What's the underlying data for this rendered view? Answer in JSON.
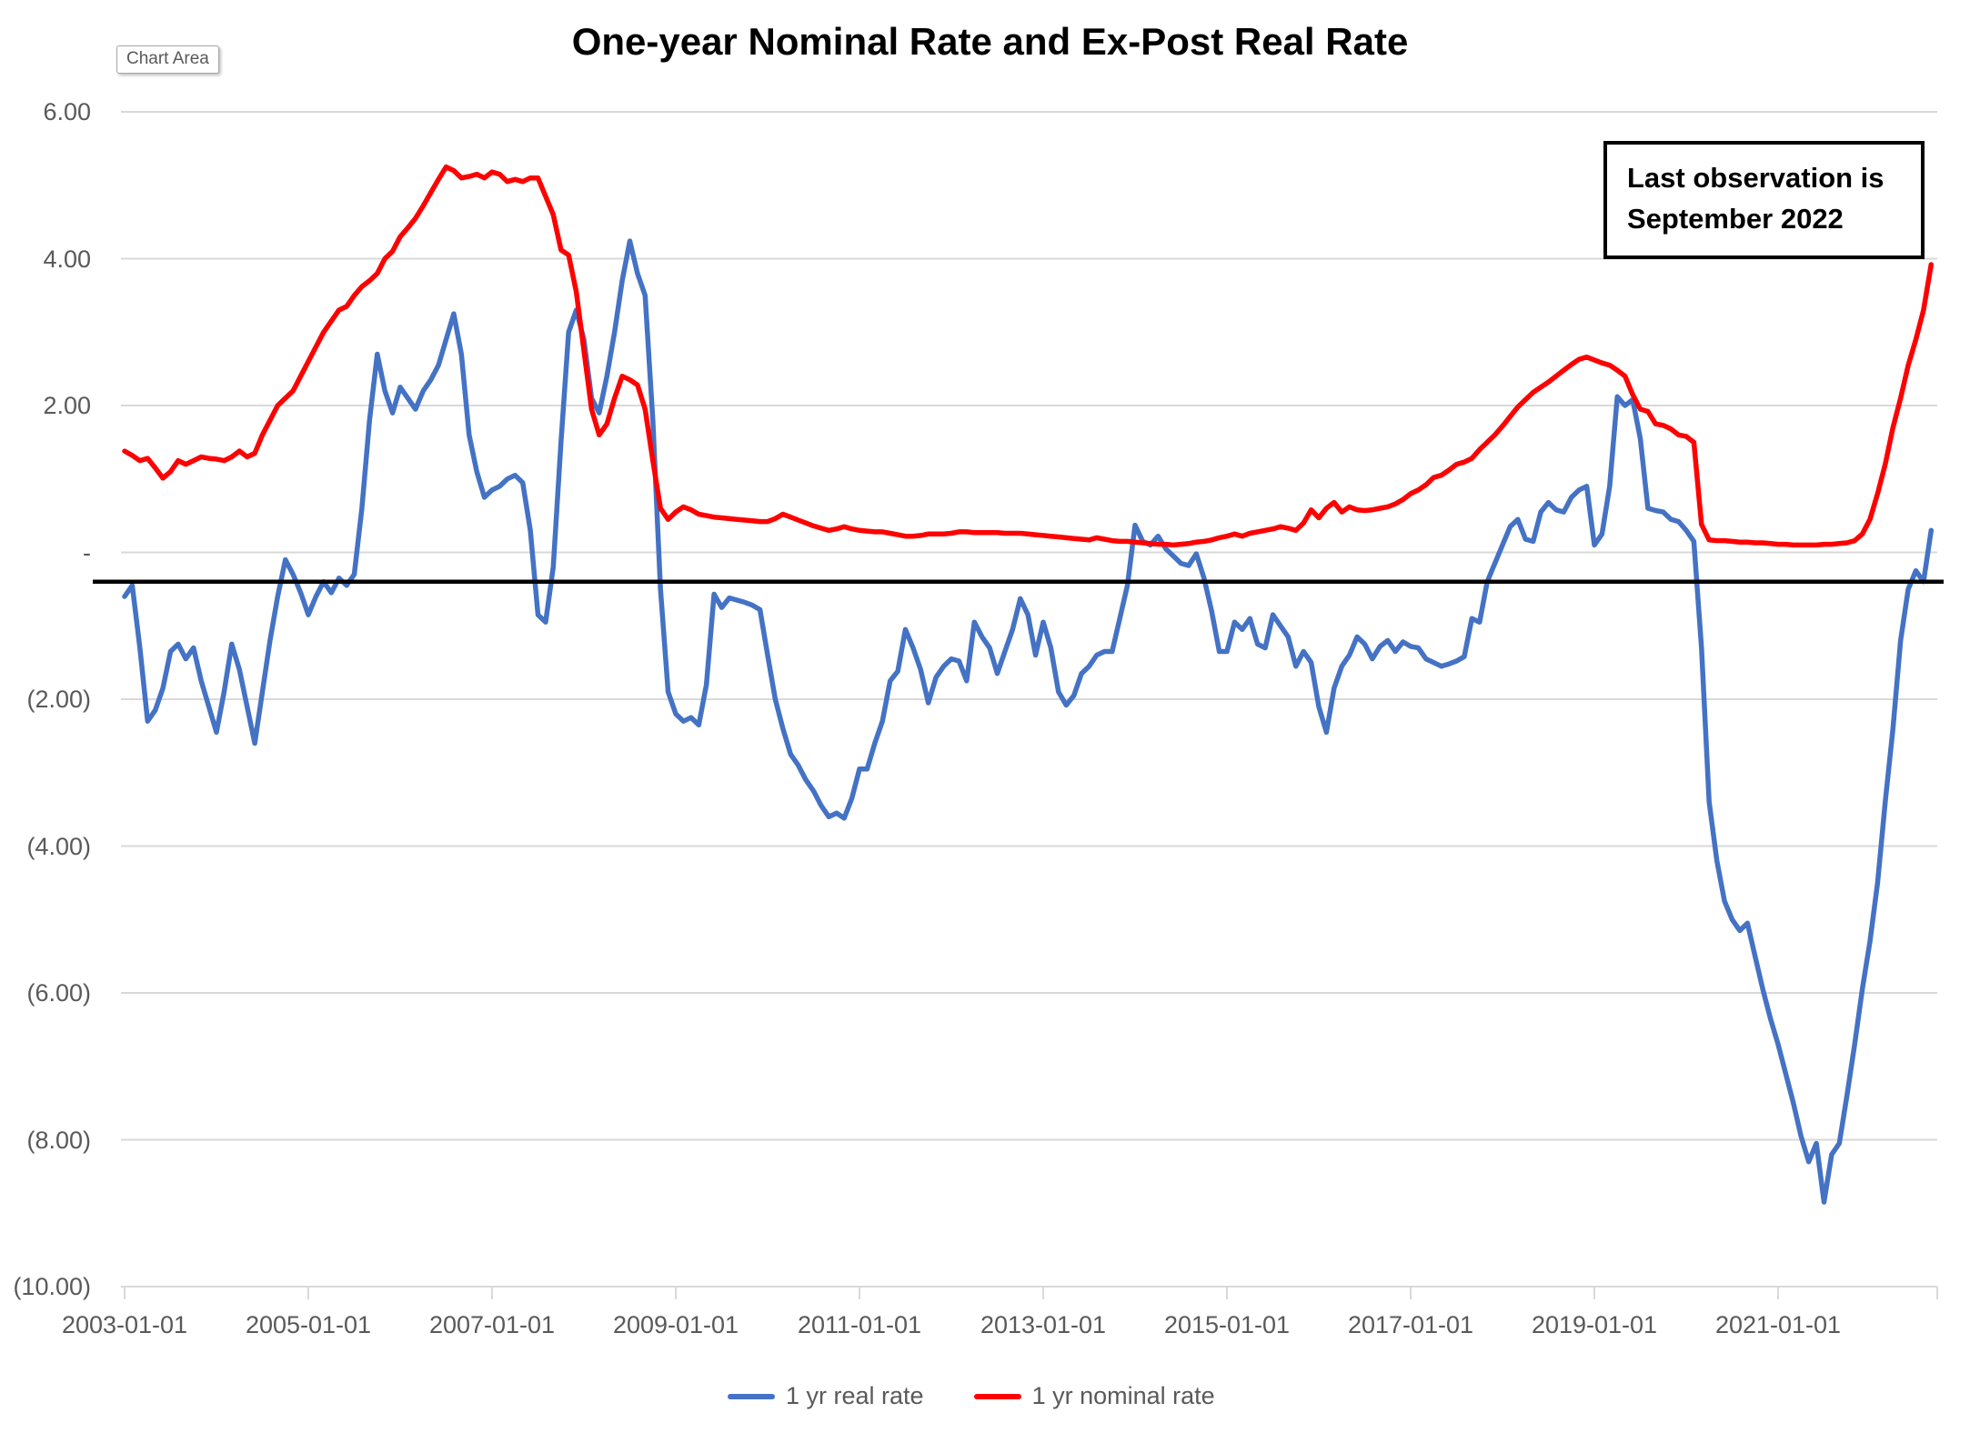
{
  "title": "One-year Nominal Rate and Ex-Post Real Rate",
  "chart_area_tooltip": "Chart Area",
  "annotation": {
    "line1": "Last observation is",
    "line2": "September 2022"
  },
  "colors": {
    "real_rate": "#4472C4",
    "nominal_rate": "#FF0000",
    "gridline": "#D9D9D9",
    "axis_text": "#595959",
    "reference_line": "#000000"
  },
  "reference_line": {
    "value": -0.4
  },
  "y_axis": {
    "labels": [
      "6.00",
      "4.00",
      "2.00",
      "-",
      "(2.00)",
      "(4.00)",
      "(6.00)",
      "(8.00)",
      "(10.00)"
    ],
    "values": [
      6,
      4,
      2,
      0,
      -2,
      -4,
      -6,
      -8,
      -10
    ]
  },
  "x_axis": {
    "labels": [
      "2003-01-01",
      "2005-01-01",
      "2007-01-01",
      "2009-01-01",
      "2011-01-01",
      "2013-01-01",
      "2015-01-01",
      "2017-01-01",
      "2019-01-01",
      "2021-01-01"
    ]
  },
  "legend": [
    {
      "label": "1 yr real rate",
      "color": "#4472C4"
    },
    {
      "label": "1 yr nominal rate",
      "color": "#FF0000"
    }
  ],
  "chart_data": {
    "type": "line",
    "title": "One-year Nominal Rate and Ex-Post Real Rate",
    "x_start": "2003-01",
    "x_end": "2022-09",
    "frequency": "monthly",
    "ylim": [
      -10,
      6
    ],
    "grid": "horizontal",
    "legend_position": "bottom",
    "annotation": "Last observation is September 2022",
    "series": [
      {
        "name": "1 yr real rate",
        "color": "#4472C4",
        "values": [
          -0.6,
          -0.45,
          -1.3,
          -2.3,
          -2.15,
          -1.85,
          -1.35,
          -1.25,
          -1.45,
          -1.3,
          -1.75,
          -2.1,
          -2.45,
          -1.9,
          -1.25,
          -1.6,
          -2.1,
          -2.6,
          -1.9,
          -1.2,
          -0.6,
          -0.1,
          -0.3,
          -0.55,
          -0.85,
          -0.6,
          -0.4,
          -0.55,
          -0.35,
          -0.45,
          -0.3,
          0.6,
          1.8,
          2.7,
          2.2,
          1.9,
          2.25,
          2.1,
          1.95,
          2.2,
          2.35,
          2.55,
          2.9,
          3.25,
          2.7,
          1.6,
          1.1,
          0.75,
          0.85,
          0.9,
          1.0,
          1.05,
          0.95,
          0.3,
          -0.85,
          -0.95,
          -0.2,
          1.5,
          3.0,
          3.3,
          2.9,
          2.1,
          1.9,
          2.4,
          3.0,
          3.7,
          4.24,
          3.8,
          3.5,
          1.8,
          -0.5,
          -1.9,
          -2.2,
          -2.3,
          -2.25,
          -2.35,
          -1.8,
          -0.57,
          -0.75,
          -0.62,
          -0.65,
          -0.68,
          -0.72,
          -0.78,
          -1.4,
          -2.0,
          -2.4,
          -2.75,
          -2.9,
          -3.1,
          -3.25,
          -3.45,
          -3.6,
          -3.55,
          -3.62,
          -3.35,
          -2.95,
          -2.95,
          -2.6,
          -2.3,
          -1.75,
          -1.62,
          -1.05,
          -1.3,
          -1.6,
          -2.05,
          -1.7,
          -1.55,
          -1.45,
          -1.48,
          -1.75,
          -0.95,
          -1.15,
          -1.3,
          -1.65,
          -1.35,
          -1.05,
          -0.63,
          -0.85,
          -1.4,
          -0.95,
          -1.3,
          -1.9,
          -2.08,
          -1.95,
          -1.65,
          -1.55,
          -1.4,
          -1.35,
          -1.35,
          -0.9,
          -0.45,
          0.37,
          0.15,
          0.1,
          0.22,
          0.05,
          -0.05,
          -0.15,
          -0.18,
          -0.02,
          -0.35,
          -0.8,
          -1.35,
          -1.35,
          -0.95,
          -1.05,
          -0.9,
          -1.25,
          -1.3,
          -0.85,
          -1.0,
          -1.15,
          -1.55,
          -1.35,
          -1.5,
          -2.1,
          -2.45,
          -1.85,
          -1.55,
          -1.4,
          -1.15,
          -1.25,
          -1.45,
          -1.28,
          -1.2,
          -1.35,
          -1.22,
          -1.28,
          -1.3,
          -1.45,
          -1.5,
          -1.55,
          -1.52,
          -1.48,
          -1.42,
          -0.9,
          -0.95,
          -0.4,
          -0.15,
          0.1,
          0.35,
          0.45,
          0.18,
          0.15,
          0.55,
          0.68,
          0.58,
          0.55,
          0.75,
          0.85,
          0.9,
          0.1,
          0.25,
          0.9,
          2.12,
          2.0,
          2.08,
          1.55,
          0.6,
          0.57,
          0.55,
          0.45,
          0.42,
          0.3,
          0.15,
          -1.3,
          -3.4,
          -4.2,
          -4.75,
          -5.0,
          -5.15,
          -5.05,
          -5.5,
          -5.95,
          -6.35,
          -6.7,
          -7.1,
          -7.5,
          -7.95,
          -8.3,
          -8.05,
          -8.85,
          -8.2,
          -8.05,
          -7.4,
          -6.7,
          -5.95,
          -5.3,
          -4.5,
          -3.4,
          -2.4,
          -1.2,
          -0.5,
          -0.25,
          -0.4,
          0.3
        ]
      },
      {
        "name": "1 yr nominal rate",
        "color": "#FF0000",
        "values": [
          1.38,
          1.32,
          1.25,
          1.28,
          1.15,
          1.01,
          1.1,
          1.25,
          1.2,
          1.25,
          1.3,
          1.28,
          1.27,
          1.25,
          1.3,
          1.38,
          1.3,
          1.35,
          1.6,
          1.8,
          2.0,
          2.1,
          2.2,
          2.4,
          2.6,
          2.8,
          3.0,
          3.15,
          3.3,
          3.35,
          3.5,
          3.62,
          3.7,
          3.8,
          4.0,
          4.1,
          4.3,
          4.42,
          4.55,
          4.72,
          4.9,
          5.08,
          5.25,
          5.2,
          5.1,
          5.12,
          5.15,
          5.1,
          5.18,
          5.15,
          5.05,
          5.08,
          5.05,
          5.1,
          5.1,
          4.85,
          4.6,
          4.12,
          4.05,
          3.55,
          2.75,
          1.95,
          1.6,
          1.75,
          2.1,
          2.4,
          2.35,
          2.28,
          1.95,
          1.25,
          0.6,
          0.45,
          0.55,
          0.62,
          0.58,
          0.52,
          0.5,
          0.48,
          0.47,
          0.46,
          0.45,
          0.44,
          0.43,
          0.42,
          0.42,
          0.46,
          0.52,
          0.48,
          0.44,
          0.4,
          0.36,
          0.33,
          0.3,
          0.32,
          0.35,
          0.32,
          0.3,
          0.29,
          0.28,
          0.28,
          0.26,
          0.24,
          0.22,
          0.22,
          0.23,
          0.25,
          0.25,
          0.25,
          0.26,
          0.28,
          0.28,
          0.27,
          0.27,
          0.27,
          0.27,
          0.26,
          0.26,
          0.26,
          0.25,
          0.24,
          0.23,
          0.22,
          0.21,
          0.2,
          0.19,
          0.18,
          0.17,
          0.2,
          0.18,
          0.16,
          0.15,
          0.15,
          0.14,
          0.13,
          0.12,
          0.11,
          0.11,
          0.1,
          0.11,
          0.12,
          0.14,
          0.15,
          0.17,
          0.2,
          0.22,
          0.25,
          0.22,
          0.26,
          0.28,
          0.3,
          0.32,
          0.35,
          0.33,
          0.3,
          0.4,
          0.58,
          0.47,
          0.6,
          0.68,
          0.55,
          0.62,
          0.58,
          0.57,
          0.58,
          0.6,
          0.62,
          0.66,
          0.72,
          0.8,
          0.85,
          0.92,
          1.02,
          1.05,
          1.12,
          1.2,
          1.23,
          1.28,
          1.4,
          1.5,
          1.6,
          1.72,
          1.85,
          1.98,
          2.08,
          2.18,
          2.25,
          2.32,
          2.4,
          2.48,
          2.56,
          2.63,
          2.66,
          2.62,
          2.58,
          2.55,
          2.48,
          2.4,
          2.15,
          1.95,
          1.92,
          1.75,
          1.73,
          1.68,
          1.6,
          1.58,
          1.5,
          0.38,
          0.17,
          0.16,
          0.16,
          0.15,
          0.14,
          0.14,
          0.13,
          0.13,
          0.12,
          0.11,
          0.11,
          0.1,
          0.1,
          0.1,
          0.1,
          0.11,
          0.11,
          0.12,
          0.13,
          0.16,
          0.25,
          0.45,
          0.8,
          1.2,
          1.7,
          2.1,
          2.55,
          2.9,
          3.3,
          3.92
        ]
      }
    ]
  }
}
